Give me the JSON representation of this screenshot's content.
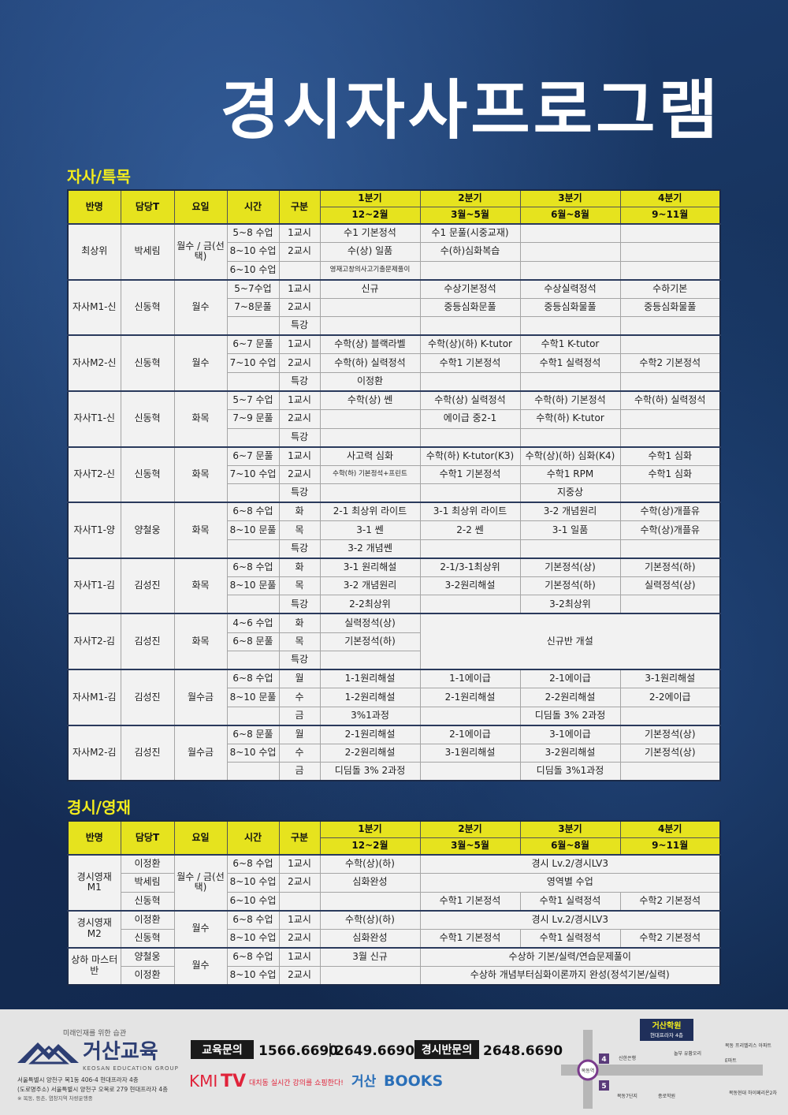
{
  "title": "경시자사프로그램",
  "sections": [
    {
      "heading": "자사/특목",
      "columns": [
        "반명",
        "담당T",
        "요일",
        "시간",
        "구분"
      ],
      "quarters": [
        {
          "name": "1분기",
          "months": "12~2월"
        },
        {
          "name": "2분기",
          "months": "3월~5월"
        },
        {
          "name": "3분기",
          "months": "6월~8월"
        },
        {
          "name": "4분기",
          "months": "9~11월"
        }
      ],
      "groups": [
        {
          "class": "최상위",
          "teacher": "박세림",
          "days": "월수 / 금(선택)",
          "rows": [
            {
              "time": "5~8 수업",
              "period": "1교시",
              "q1": "수1 기본정석",
              "q2": "수1 문풀(시중교재)"
            },
            {
              "time": "8~10 수업",
              "period": "2교시",
              "q1": "수(상) 일품",
              "q2": "수(하)심화복습"
            },
            {
              "time": "6~10 수업",
              "q1": "영재고창의사고기출문제풀이"
            }
          ]
        },
        {
          "class": "자사M1-신",
          "teacher": "신동혁",
          "days": "월수",
          "rows": [
            {
              "time": "5~7수업",
              "period": "1교시",
              "q1": "신규",
              "q2": "수상기본정석",
              "q3": "수상실력정석",
              "q4": "수하기본"
            },
            {
              "time": "7~8문풀",
              "period": "2교시",
              "q2": "중등심화문풀",
              "q3": "중등심화물풀",
              "q4": "중등심화물풀"
            },
            {
              "period": "특강"
            }
          ]
        },
        {
          "class": "자사M2-신",
          "teacher": "신동혁",
          "days": "월수",
          "rows": [
            {
              "time": "6~7 문풀",
              "period": "1교시",
              "q1": "수학(상) 블랙라벨",
              "q2": "수학(상)(하) K-tutor",
              "q3": "수학1 K-tutor"
            },
            {
              "time": "7~10 수업",
              "period": "2교시",
              "q1": "수학(하) 실력정석",
              "q2": "수학1 기본정석",
              "q3": "수학1 실력정석",
              "q4": "수학2 기본정석"
            },
            {
              "period": "특강",
              "q1": "이정환"
            }
          ]
        },
        {
          "class": "자사T1-신",
          "teacher": "신동혁",
          "days": "화목",
          "rows": [
            {
              "time": "5~7 수업",
              "period": "1교시",
              "q1": "수학(상) 쎈",
              "q2": "수학(상) 실력정석",
              "q3": "수학(하) 기본정석",
              "q4": "수학(하) 실력정석"
            },
            {
              "time": "7~9 문풀",
              "period": "2교시",
              "q2": "에이급 중2-1",
              "q3": "수학(하) K-tutor"
            },
            {
              "period": "특강"
            }
          ]
        },
        {
          "class": "자사T2-신",
          "teacher": "신동혁",
          "days": "화목",
          "rows": [
            {
              "time": "6~7 문풀",
              "period": "1교시",
              "q1": "사고력 심화",
              "q2": "수학(하) K-tutor(K3)",
              "q3": "수학(상)(하) 심화(K4)",
              "q4": "수학1 심화"
            },
            {
              "time": "7~10 수업",
              "period": "2교시",
              "q1": "수학(하) 기본정석+프린트",
              "q2": "수학1 기본정석",
              "q3": "수학1 RPM",
              "q4": "수학1 심화"
            },
            {
              "period": "특강",
              "q3": "지중상"
            }
          ]
        },
        {
          "class": "자사T1-양",
          "teacher": "양철웅",
          "days": "화목",
          "rows": [
            {
              "time": "6~8 수업",
              "period": "화",
              "q1": "2-1 최상위 라이트",
              "q2": "3-1 최상위 라이트",
              "q3": "3-2 개념원리",
              "q4": "수학(상)개플유"
            },
            {
              "time": "8~10 문풀",
              "period": "목",
              "q1": "3-1 쎈",
              "q2": "2-2 쎈",
              "q3": "3-1 일품",
              "q4": "수학(상)개플유"
            },
            {
              "period": "특강",
              "q1": "3-2 개념쎈"
            }
          ]
        },
        {
          "class": "자사T1-김",
          "teacher": "김성진",
          "days": "화목",
          "rows": [
            {
              "time": "6~8 수업",
              "period": "화",
              "q1": "3-1 원리해설",
              "q2": "2-1/3-1최상위",
              "q3": "기본정석(상)",
              "q4": "기본정석(하)"
            },
            {
              "time": "8~10 문풀",
              "period": "목",
              "q1": "3-2 개념원리",
              "q2": "3-2원리해설",
              "q3": "기본정석(하)",
              "q4": "실력정석(상)"
            },
            {
              "period": "특강",
              "q1": "2-2최상위",
              "q3": "3-2최상위"
            }
          ]
        },
        {
          "class": "자사T2-김",
          "teacher": "김성진",
          "days": "화목",
          "rows": [
            {
              "time": "4~6 수업",
              "period": "화",
              "q1": "실력정석(상)",
              "q2": "신규반 개설"
            },
            {
              "time": "6~8 문풀",
              "period": "목",
              "q1": "기본정석(하)"
            },
            {
              "period": "특강"
            }
          ]
        },
        {
          "class": "자사M1-김",
          "teacher": "김성진",
          "days": "월수금",
          "rows": [
            {
              "time": "6~8 수업",
              "period": "월",
              "q1": "1-1원리해설",
              "q2": "1-1에이급",
              "q3": "2-1에이급",
              "q4": "3-1원리해설"
            },
            {
              "time": "8~10 문풀",
              "period": "수",
              "q1": "1-2원리해설",
              "q2": "2-1원리해설",
              "q3": "2-2원리해설",
              "q4": "2-2에이급"
            },
            {
              "period": "금",
              "q1": "3%1과정",
              "q3": "디딤돌 3% 2과정"
            }
          ]
        },
        {
          "class": "자사M2-김",
          "teacher": "김성진",
          "days": "월수금",
          "rows": [
            {
              "time": "6~8 문풀",
              "period": "월",
              "q1": "2-1원리해설",
              "q2": "2-1에이급",
              "q3": "3-1에이급",
              "q4": "기본정석(상)"
            },
            {
              "time": "8~10 수업",
              "period": "수",
              "q1": "2-2원리해설",
              "q2": "3-1원리해설",
              "q3": "3-2원리해설",
              "q4": "기본정석(상)"
            },
            {
              "period": "금",
              "q1": "디딤돌 3% 2과정",
              "q3": "디딤돌 3%1과정"
            }
          ]
        }
      ]
    },
    {
      "heading": "경시/영재",
      "columns": [
        "반명",
        "담당T",
        "요일",
        "시간",
        "구분"
      ],
      "quarters": [
        {
          "name": "1분기",
          "months": "12~2월"
        },
        {
          "name": "2분기",
          "months": "3월~5월"
        },
        {
          "name": "3분기",
          "months": "6월~8월"
        },
        {
          "name": "4분기",
          "months": "9~11월"
        }
      ],
      "groups": [
        {
          "class": "경시영재 M1",
          "days": "월수 / 금(선택)",
          "rows": [
            {
              "teacher": "이정환",
              "time": "6~8 수업",
              "period": "1교시",
              "q1": "수학(상)(하)",
              "q2": "경시 Lv.2/경시LV3"
            },
            {
              "teacher": "박세림",
              "time": "8~10 수업",
              "period": "2교시",
              "q1": "심화완성",
              "q2": "영역별 수업"
            },
            {
              "teacher": "신동혁",
              "time": "6~10 수업",
              "q2": "수학1 기본정석",
              "q3": "수학1 실력정석",
              "q4": "수학2 기본정석"
            }
          ]
        },
        {
          "class": "경시영재 M2",
          "days": "월수",
          "rows": [
            {
              "teacher": "이정환",
              "time": "6~8 수업",
              "period": "1교시",
              "q1": "수학(상)(하)",
              "q2": "경시 Lv.2/경시LV3"
            },
            {
              "teacher": "신동혁",
              "time": "8~10 수업",
              "period": "2교시",
              "q1": "심화완성",
              "q2": "수학1 기본정석",
              "q3": "수학1 실력정석",
              "q4": "수학2 기본정석"
            }
          ]
        },
        {
          "class": "상하 마스터반",
          "days": "월수",
          "rows": [
            {
              "teacher": "양철웅",
              "time": "6~8 수업",
              "period": "1교시",
              "q1": "3월 신규",
              "q2": "수상하 기본/실력/연습문제풀이"
            },
            {
              "teacher": "이정환",
              "time": "8~10 수업",
              "period": "2교시",
              "q2": "수상하 개념부터심화이론까지 완성(정석기본/실력)"
            }
          ]
        }
      ]
    }
  ],
  "footer": {
    "slogan": "미래인재를 위한 습관",
    "brand": "거산교육",
    "brand_en": "KEOSAN EDUCATION GROUP",
    "address": "서울특별시 양천구 목1동 406-4 현대프라자 4층",
    "road_address": "(도로명주소) 서울특별시 양천구 오목로 279 현대프라자 4층",
    "note": "※ 목동, 등촌, 염창지역 차량운행중",
    "contact_label": "교육문의",
    "phones": [
      "1566.6690",
      "2649.6690"
    ],
    "contest_label": "경시반문의",
    "contest_phone": "2648.6690",
    "kmi": "KMI",
    "tv": "TV",
    "kmi_slogan": "대치동 실시간 강의를 쇼핑한다!",
    "books_prefix": "거산",
    "books": "BOOKS",
    "map": {
      "academy": "거산학원",
      "academy_floor": "현대프라자 4층",
      "bank": "신한은행",
      "restaurant": "놀부 유황오리",
      "apartment": "목동 프리벨리스 아파트",
      "mart": "E마트",
      "station": "목동역",
      "complex": "목동7단지",
      "school": "종로학원",
      "hyperion": "목동현대 하이페리온2차",
      "exits": [
        "4",
        "5"
      ]
    }
  }
}
